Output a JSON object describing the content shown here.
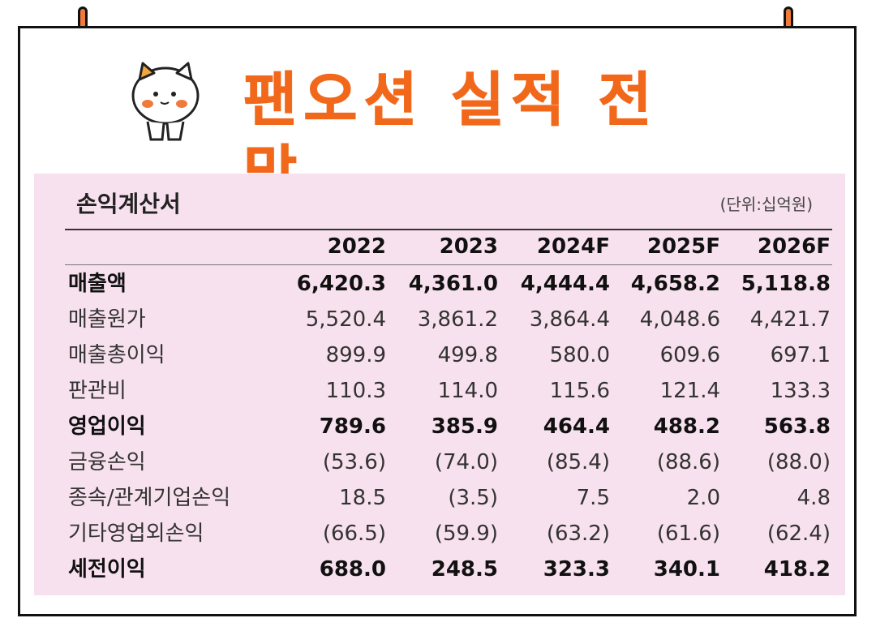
{
  "title": "팬오션 실적 전망",
  "table": {
    "heading": "손익계산서",
    "unit": "(단위:십억원)",
    "years": [
      "2022",
      "2023",
      "2024F",
      "2025F",
      "2026F"
    ],
    "rows": [
      {
        "label": "매출액",
        "values": [
          "6,420.3",
          "4,361.0",
          "4,444.4",
          "4,658.2",
          "5,118.8"
        ]
      },
      {
        "label": "매출원가",
        "values": [
          "5,520.4",
          "3,861.2",
          "3,864.4",
          "4,048.6",
          "4,421.7"
        ]
      },
      {
        "label": "매출총이익",
        "values": [
          "899.9",
          "499.8",
          "580.0",
          "609.6",
          "697.1"
        ]
      },
      {
        "label": "판관비",
        "values": [
          "110.3",
          "114.0",
          "115.6",
          "121.4",
          "133.3"
        ]
      },
      {
        "label": "영업이익",
        "values": [
          "789.6",
          "385.9",
          "464.4",
          "488.2",
          "563.8"
        ]
      },
      {
        "label": "금융손익",
        "values": [
          "(53.6)",
          "(74.0)",
          "(85.4)",
          "(88.6)",
          "(88.0)"
        ]
      },
      {
        "label": "종속/관계기업손익",
        "values": [
          "18.5",
          "(3.5)",
          "7.5",
          "2.0",
          "4.8"
        ]
      },
      {
        "label": "기타영업외손익",
        "values": [
          "(66.5)",
          "(59.9)",
          "(63.2)",
          "(61.6)",
          "(62.4)"
        ]
      },
      {
        "label": "세전이익",
        "values": [
          "688.0",
          "248.5",
          "323.3",
          "340.1",
          "418.2"
        ]
      }
    ]
  },
  "chart_data": {
    "type": "table",
    "columns": [
      "2022",
      "2023",
      "2024F",
      "2025F",
      "2026F"
    ],
    "rows": [
      {
        "label": "매출액",
        "values": [
          6420.3,
          4361.0,
          4444.4,
          4658.2,
          5118.8
        ]
      },
      {
        "label": "매출원가",
        "values": [
          5520.4,
          3861.2,
          3864.4,
          4048.6,
          4421.7
        ]
      },
      {
        "label": "매출총이익",
        "values": [
          899.9,
          499.8,
          580.0,
          609.6,
          697.1
        ]
      },
      {
        "label": "판관비",
        "values": [
          110.3,
          114.0,
          115.6,
          121.4,
          133.3
        ]
      },
      {
        "label": "영업이익",
        "values": [
          789.6,
          385.9,
          464.4,
          488.2,
          563.8
        ]
      },
      {
        "label": "금융손익",
        "values": [
          -53.6,
          -74.0,
          -85.4,
          -88.6,
          -88.0
        ]
      },
      {
        "label": "종속/관계기업손익",
        "values": [
          18.5,
          -3.5,
          7.5,
          2.0,
          4.8
        ]
      },
      {
        "label": "기타영업외손익",
        "values": [
          -66.5,
          -59.9,
          -63.2,
          -61.6,
          -62.4
        ]
      },
      {
        "label": "세전이익",
        "values": [
          688.0,
          248.5,
          323.3,
          340.1,
          418.2
        ]
      }
    ]
  },
  "colors": {
    "title": "#f2681b",
    "panel": "#f8e1ee",
    "pin": "#f07a3c"
  }
}
